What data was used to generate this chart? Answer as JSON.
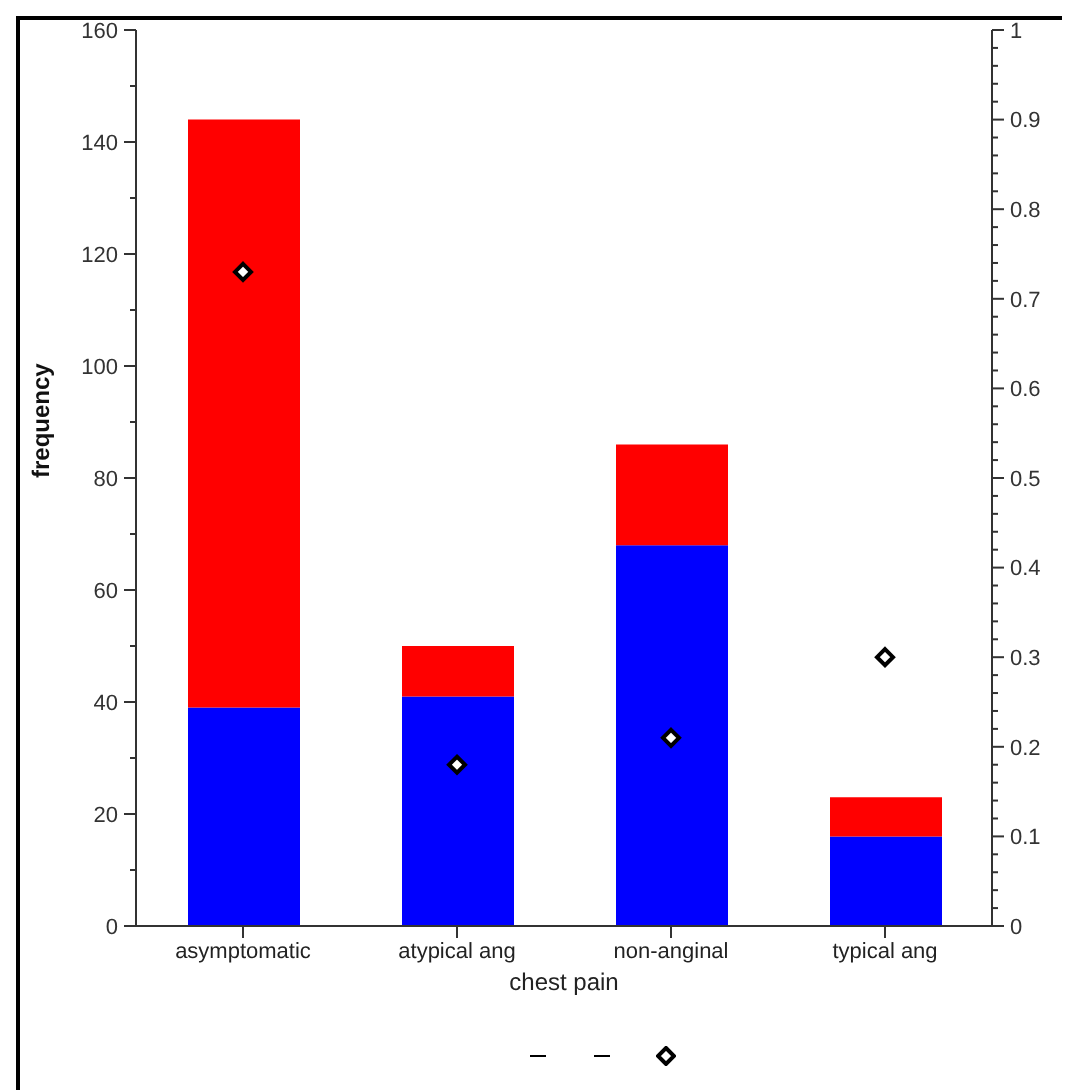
{
  "chart_data": {
    "type": "bar",
    "xlabel": "chest pain",
    "ylabel": "frequency",
    "categories": [
      "asymptomatic",
      "atypical ang",
      "non-anginal",
      "typical ang"
    ],
    "stacked": true,
    "series": [
      {
        "color": "#0000ff",
        "values": [
          39,
          41,
          68,
          16
        ]
      },
      {
        "color": "#ff0000",
        "values": [
          105,
          9,
          18,
          7
        ]
      },
      {
        "type": "scatter",
        "axis": "y2",
        "color": "#000000",
        "marker": "diamond",
        "values": [
          0.73,
          0.18,
          0.21,
          0.3
        ]
      }
    ],
    "ylim": [
      0,
      160
    ],
    "yticks": [
      0,
      {
        "value": 10,
        "label": null
      },
      20,
      {
        "value": 30,
        "label": null
      },
      40,
      {
        "value": 50,
        "label": null
      },
      60,
      {
        "value": 70,
        "label": null
      },
      80,
      {
        "value": 90,
        "label": null
      },
      100,
      {
        "value": 110,
        "label": null
      },
      120,
      {
        "value": 130,
        "label": null
      },
      140,
      {
        "value": 150,
        "label": null
      },
      160
    ],
    "y2lim": [
      0,
      1
    ],
    "y2ticks": [
      0,
      {
        "value": 0.02,
        "label": null
      },
      {
        "value": 0.04,
        "label": null
      },
      {
        "value": 0.06,
        "label": null
      },
      {
        "value": 0.08,
        "label": null
      },
      0.1,
      {
        "value": 0.12,
        "label": null
      },
      {
        "value": 0.14,
        "label": null
      },
      {
        "value": 0.16,
        "label": null
      },
      {
        "value": 0.18,
        "label": null
      },
      0.2,
      {
        "value": 0.22,
        "label": null
      },
      {
        "value": 0.24,
        "label": null
      },
      {
        "value": 0.26,
        "label": null
      },
      {
        "value": 0.28,
        "label": null
      },
      0.3,
      {
        "value": 0.32,
        "label": null
      },
      {
        "value": 0.34,
        "label": null
      },
      {
        "value": 0.36,
        "label": null
      },
      {
        "value": 0.38,
        "label": null
      },
      0.4,
      {
        "value": 0.42,
        "label": null
      },
      {
        "value": 0.44,
        "label": null
      },
      {
        "value": 0.46,
        "label": null
      },
      {
        "value": 0.48,
        "label": null
      },
      0.5,
      {
        "value": 0.52,
        "label": null
      },
      {
        "value": 0.54,
        "label": null
      },
      {
        "value": 0.56,
        "label": null
      },
      {
        "value": 0.58,
        "label": null
      },
      0.6,
      {
        "value": 0.62,
        "label": null
      },
      {
        "value": 0.64,
        "label": null
      },
      {
        "value": 0.66,
        "label": null
      },
      {
        "value": 0.68,
        "label": null
      },
      0.7,
      {
        "value": 0.72,
        "label": null
      },
      {
        "value": 0.74,
        "label": null
      },
      {
        "value": 0.76,
        "label": null
      },
      {
        "value": 0.78,
        "label": null
      },
      0.8,
      {
        "value": 0.82,
        "label": null
      },
      {
        "value": 0.84,
        "label": null
      },
      {
        "value": 0.86,
        "label": null
      },
      {
        "value": 0.88,
        "label": null
      },
      0.9,
      {
        "value": 0.92,
        "label": null
      },
      {
        "value": 0.94,
        "label": null
      },
      {
        "value": 0.96,
        "label": null
      },
      {
        "value": 0.98,
        "label": null
      },
      1
    ],
    "grid": false
  }
}
